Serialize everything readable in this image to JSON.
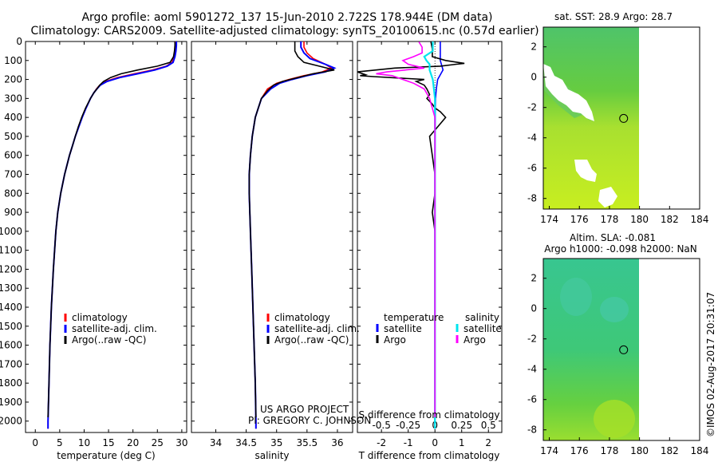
{
  "title": {
    "line1": "Argo profile: aoml 5901272_137 15-Jun-2010 2.722S 178.944E (DM data)",
    "line2": "Climatology: CARS2009. Satellite-adjusted climatology: synTS_20100615.nc (0.57d earlier)"
  },
  "colors": {
    "climatology": "#ff0000",
    "satellite": "#0000ff",
    "argo": "#000000",
    "sat_salinity": "#00e5ee",
    "argo_salinity": "#ff00ff"
  },
  "depth_ticks": [
    0,
    100,
    200,
    300,
    400,
    500,
    600,
    700,
    800,
    900,
    1000,
    1100,
    1200,
    1300,
    1400,
    1500,
    1600,
    1700,
    1800,
    1900,
    2000
  ],
  "chart_data": [
    {
      "type": "line",
      "title": "",
      "xlabel": "temperature (deg C)",
      "ylabel": "depth",
      "xlim": [
        -2,
        31
      ],
      "ylim": [
        2060,
        0
      ],
      "xticks": [
        0,
        5,
        10,
        15,
        20,
        25,
        30
      ],
      "legend": [
        "climatology",
        "satellite-adj. clim.",
        "Argo(..raw -QC)"
      ],
      "series": [
        {
          "name": "climatology",
          "depth": [
            0,
            20,
            50,
            80,
            110,
            130,
            150,
            170,
            190,
            210,
            230,
            250,
            270,
            300,
            350,
            400,
            450,
            500,
            550,
            600,
            700,
            800,
            900,
            1000,
            1200,
            1400,
            1600,
            1800,
            2000,
            2040
          ],
          "values": [
            28.7,
            28.7,
            28.6,
            28.4,
            28.0,
            26.8,
            24.0,
            20.3,
            16.8,
            14.4,
            13.2,
            12.5,
            12.0,
            11.3,
            10.4,
            9.6,
            8.9,
            8.2,
            7.6,
            7.0,
            6.0,
            5.2,
            4.6,
            4.2,
            3.7,
            3.3,
            3.0,
            2.8,
            2.6,
            2.6
          ]
        },
        {
          "name": "satellite-adj. clim.",
          "depth": [
            0,
            20,
            50,
            80,
            110,
            130,
            150,
            170,
            190,
            210,
            230,
            250,
            270,
            300,
            350,
            400,
            450,
            500,
            550,
            600,
            700,
            800,
            900,
            1000,
            1200,
            1400,
            1600,
            1800,
            2000,
            2040
          ],
          "values": [
            28.9,
            28.9,
            28.8,
            28.6,
            28.2,
            27.0,
            24.5,
            21.0,
            17.3,
            14.7,
            13.3,
            12.6,
            12.0,
            11.3,
            10.4,
            9.6,
            8.9,
            8.2,
            7.6,
            7.0,
            6.0,
            5.2,
            4.6,
            4.2,
            3.7,
            3.3,
            3.0,
            2.8,
            2.6,
            2.6
          ]
        },
        {
          "name": "Argo(..raw -QC)",
          "depth": [
            2,
            20,
            50,
            80,
            110,
            130,
            150,
            170,
            190,
            210,
            230,
            250,
            270,
            300,
            350,
            400,
            450,
            500,
            550,
            600,
            700,
            800,
            900,
            1000,
            1200,
            1400,
            1600,
            1800,
            1980
          ],
          "values": [
            28.6,
            28.6,
            28.5,
            28.3,
            27.6,
            25.0,
            21.0,
            17.6,
            15.4,
            14.0,
            13.2,
            12.6,
            12.0,
            11.3,
            10.3,
            9.5,
            8.8,
            8.2,
            7.6,
            7.0,
            6.0,
            5.2,
            4.6,
            4.2,
            3.7,
            3.3,
            3.0,
            2.8,
            2.6
          ]
        }
      ]
    },
    {
      "type": "line",
      "xlabel": "salinity",
      "ylabel": "depth",
      "xlim": [
        33.6,
        36.25
      ],
      "ylim": [
        2060,
        0
      ],
      "xticks": [
        34,
        34.5,
        35,
        35.5,
        36
      ],
      "legend": [
        "climatology",
        "satellite-adj. clim.",
        "Argo(..raw -QC)"
      ],
      "series": [
        {
          "name": "climatology",
          "depth": [
            0,
            30,
            60,
            90,
            120,
            140,
            160,
            180,
            200,
            220,
            250,
            300,
            350,
            400,
            500,
            600,
            700,
            800,
            1000,
            1200,
            1400,
            1600,
            1800,
            2000,
            2040
          ],
          "values": [
            35.45,
            35.45,
            35.5,
            35.6,
            35.8,
            35.9,
            35.75,
            35.45,
            35.2,
            35.0,
            34.85,
            34.75,
            34.7,
            34.65,
            34.6,
            34.57,
            34.55,
            34.55,
            34.57,
            34.59,
            34.61,
            34.63,
            34.65,
            34.66,
            34.66
          ]
        },
        {
          "name": "satellite-adj. clim.",
          "depth": [
            0,
            30,
            60,
            90,
            120,
            140,
            160,
            180,
            200,
            220,
            250,
            300,
            350,
            400,
            500,
            600,
            700,
            800,
            1000,
            1200,
            1400,
            1600,
            1800,
            2000,
            2040
          ],
          "values": [
            35.4,
            35.4,
            35.45,
            35.55,
            35.8,
            35.95,
            35.8,
            35.5,
            35.25,
            35.05,
            34.9,
            34.75,
            34.7,
            34.65,
            34.6,
            34.57,
            34.55,
            34.55,
            34.57,
            34.59,
            34.61,
            34.63,
            34.65,
            34.66,
            34.66
          ]
        },
        {
          "name": "Argo(..raw -QC)",
          "depth": [
            2,
            20,
            50,
            80,
            110,
            130,
            150,
            170,
            190,
            210,
            230,
            260,
            300,
            350,
            400,
            500,
            600,
            700,
            800,
            1000,
            1200,
            1400,
            1600,
            1800,
            1980
          ],
          "values": [
            35.3,
            35.3,
            35.3,
            35.35,
            35.45,
            35.7,
            35.95,
            35.6,
            35.35,
            35.1,
            34.95,
            34.85,
            34.75,
            34.7,
            34.65,
            34.6,
            34.57,
            34.55,
            34.55,
            34.57,
            34.59,
            34.61,
            34.63,
            34.65,
            34.66
          ]
        }
      ],
      "annotations": [
        "US ARGO PROJECT",
        "PI: GREGORY C. JOHNSON"
      ]
    },
    {
      "type": "line",
      "xlabel": "T difference from climatology",
      "top_axis_label": "S difference from climatology",
      "ylabel": "depth",
      "xlim": [
        -2.9,
        2.5
      ],
      "ylim": [
        2060,
        0
      ],
      "xticks": [
        -2,
        -1,
        0,
        1,
        2
      ],
      "top_xticks": [
        -0.5,
        -0.25,
        0,
        0.25,
        0.5
      ],
      "legend": [
        "temperature",
        "satellite",
        "Argo",
        "salinity",
        "satellite",
        "Argo"
      ],
      "series": [
        {
          "name": "temperature satellite",
          "depth": [
            0,
            50,
            100,
            150,
            200,
            250,
            300,
            400,
            600,
            800,
            1000,
            1500,
            2040
          ],
          "values": [
            0.2,
            0.2,
            0.2,
            0.3,
            0.1,
            0.05,
            0.02,
            0.01,
            0,
            0,
            0,
            0,
            0
          ]
        },
        {
          "name": "temperature Argo",
          "depth": [
            2,
            40,
            80,
            100,
            115,
            120,
            130,
            140,
            160,
            175,
            180,
            185,
            200,
            210,
            230,
            250,
            280,
            300,
            330,
            350,
            370,
            400,
            450,
            500,
            600,
            700,
            800,
            900,
            1000,
            1200,
            1500,
            1800,
            1980
          ],
          "values": [
            -0.15,
            -0.1,
            -0.1,
            0.4,
            1.1,
            0.8,
            0.2,
            -1.5,
            -2.9,
            -2.6,
            -2.8,
            -2.3,
            -0.4,
            -0.7,
            -0.4,
            -0.3,
            -0.2,
            -0.3,
            -0.1,
            0,
            0.2,
            0.4,
            0.1,
            -0.2,
            -0.1,
            0,
            0,
            -0.1,
            0,
            0,
            0,
            0,
            0
          ]
        },
        {
          "name": "salinity satellite",
          "depth": [
            0,
            50,
            80,
            100,
            120,
            150,
            200,
            250,
            300,
            400,
            600,
            800,
            1000,
            1500,
            2040
          ],
          "values": [
            -0.02,
            -0.02,
            -0.1,
            -0.08,
            -0.05,
            -0.05,
            -0.02,
            -0.01,
            0,
            0,
            0,
            0,
            0,
            0,
            0
          ]
        },
        {
          "name": "salinity Argo",
          "depth": [
            2,
            30,
            60,
            80,
            100,
            120,
            140,
            160,
            170,
            180,
            200,
            220,
            250,
            300,
            400,
            600,
            800,
            1000,
            1500,
            1980
          ],
          "values": [
            -0.15,
            -0.12,
            -0.12,
            -0.2,
            -0.3,
            -0.25,
            -0.1,
            -0.45,
            -0.55,
            -0.4,
            -0.3,
            -0.2,
            -0.1,
            -0.05,
            0,
            0,
            0,
            0,
            0,
            0
          ]
        }
      ]
    }
  ],
  "maps": {
    "sst": {
      "title": "sat. SST: 28.9 Argo: 28.7",
      "x_ticks": [
        "174",
        "176",
        "178",
        "180",
        "182",
        "184"
      ],
      "y_ticks": [
        "2",
        "0",
        "-2",
        "-4",
        "-6",
        "-8"
      ],
      "argo_marker": {
        "lon": 178.944,
        "lat": -2.722
      }
    },
    "sla": {
      "title1": "Altim. SLA: -0.081",
      "title2": "Argo h1000: -0.098 h2000: NaN",
      "x_ticks": [
        "174",
        "176",
        "178",
        "180",
        "182",
        "184"
      ],
      "y_ticks": [
        "2",
        "0",
        "-2",
        "-4",
        "-6",
        "-8"
      ],
      "argo_marker": {
        "lon": 178.944,
        "lat": -2.722
      }
    }
  },
  "footer": "©IMOS 02-Aug-2017 20:31:07"
}
